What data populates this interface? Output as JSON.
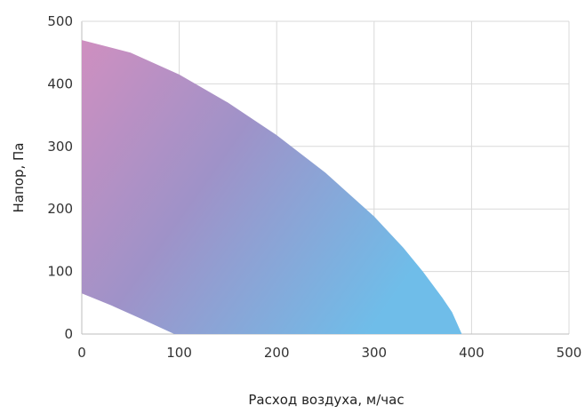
{
  "chart_data": {
    "type": "area",
    "xlabel": "Расход воздуха, м/час",
    "ylabel": "Напор, Па",
    "xlim": [
      0,
      500
    ],
    "ylim": [
      0,
      500
    ],
    "x_ticks": [
      0,
      100,
      200,
      300,
      400,
      500
    ],
    "y_ticks": [
      0,
      100,
      200,
      300,
      400,
      500
    ],
    "grid": true,
    "gradient": {
      "start_color": "#cf8fc0",
      "mid_color": "#9f92c8",
      "end_color": "#6fbde9"
    },
    "upper_curve": [
      [
        0,
        470
      ],
      [
        50,
        450
      ],
      [
        100,
        415
      ],
      [
        150,
        370
      ],
      [
        200,
        318
      ],
      [
        250,
        258
      ],
      [
        300,
        188
      ],
      [
        330,
        138
      ],
      [
        350,
        100
      ],
      [
        370,
        58
      ],
      [
        380,
        35
      ],
      [
        390,
        0
      ]
    ],
    "lower_curve": [
      [
        0,
        65
      ],
      [
        30,
        46
      ],
      [
        60,
        25
      ],
      [
        95,
        0
      ]
    ]
  }
}
